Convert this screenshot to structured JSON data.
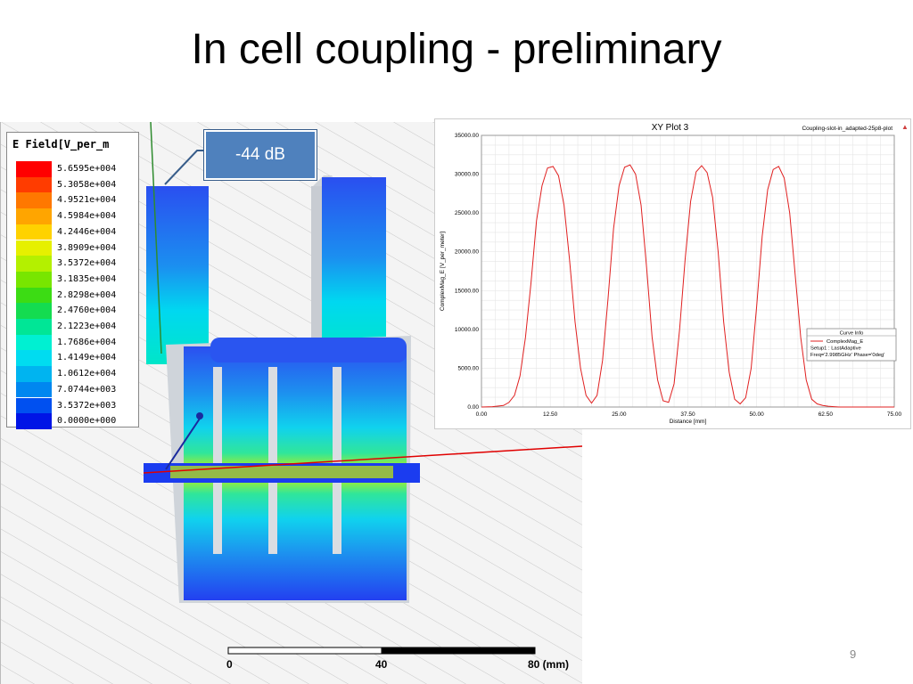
{
  "slide": {
    "title": "In cell coupling - preliminary",
    "page_number": "9"
  },
  "callout": {
    "label": "-44 dB"
  },
  "legend": {
    "title": "E Field[V_per_m",
    "items": [
      {
        "value": "5.6595e+004",
        "color": "#ff0000"
      },
      {
        "value": "5.3058e+004",
        "color": "#ff3c00"
      },
      {
        "value": "4.9521e+004",
        "color": "#ff7800"
      },
      {
        "value": "4.5984e+004",
        "color": "#ffa500"
      },
      {
        "value": "4.2446e+004",
        "color": "#ffd200"
      },
      {
        "value": "3.8909e+004",
        "color": "#e6f000"
      },
      {
        "value": "3.5372e+004",
        "color": "#b4f000"
      },
      {
        "value": "3.1835e+004",
        "color": "#78e600"
      },
      {
        "value": "2.8298e+004",
        "color": "#3cdc14"
      },
      {
        "value": "2.4760e+004",
        "color": "#14dc50"
      },
      {
        "value": "2.1223e+004",
        "color": "#00e696"
      },
      {
        "value": "1.7686e+004",
        "color": "#00f0d2"
      },
      {
        "value": "1.4149e+004",
        "color": "#00dcf0"
      },
      {
        "value": "1.0612e+004",
        "color": "#00b4f0"
      },
      {
        "value": "7.0744e+003",
        "color": "#0087f0"
      },
      {
        "value": "3.5372e+003",
        "color": "#0050f0"
      },
      {
        "value": "0.0000e+000",
        "color": "#0014e6"
      }
    ]
  },
  "scale_bar": {
    "labels": [
      "0",
      "40",
      "80 (mm)"
    ]
  },
  "chart_data": {
    "type": "line",
    "title": "XY Plot 3",
    "subtitle": "Coupling-slot-in_adapted-25p8-plot",
    "xlabel": "Distance [mm]",
    "ylabel": "ComplexMag_E [V_per_meter]",
    "xlim": [
      0,
      75
    ],
    "ylim": [
      0,
      35000
    ],
    "x_ticks": [
      "0.00",
      "12.50",
      "25.00",
      "37.50",
      "50.00",
      "62.50",
      "75.00"
    ],
    "y_ticks": [
      "0.00",
      "5000.00",
      "10000.00",
      "15000.00",
      "20000.00",
      "25000.00",
      "30000.00",
      "35000.00"
    ],
    "legend": {
      "title": "Curve Info",
      "entries": [
        "ComplexMag_E",
        "Setup1 : LastAdaptive",
        "Freq='2.9985GHz' Phase='0deg'"
      ],
      "position": "right"
    },
    "series": [
      {
        "name": "ComplexMag_E",
        "color": "#e02020",
        "x": [
          0,
          2,
          4,
          5,
          6,
          7,
          8,
          9,
          10,
          11,
          12,
          13,
          14,
          15,
          16,
          17,
          18,
          19,
          20,
          21,
          22,
          23,
          24,
          25,
          26,
          27,
          28,
          29,
          30,
          31,
          32,
          33,
          34,
          35,
          36,
          37,
          38,
          39,
          40,
          41,
          42,
          43,
          44,
          45,
          46,
          47,
          48,
          49,
          50,
          51,
          52,
          53,
          54,
          55,
          56,
          57,
          58,
          59,
          60,
          61,
          62,
          63,
          64,
          65,
          66,
          67,
          68,
          69,
          70,
          72,
          75
        ],
        "y": [
          0,
          50,
          200,
          600,
          1500,
          4000,
          9000,
          16000,
          24000,
          28500,
          30800,
          31000,
          29800,
          26000,
          19000,
          11000,
          5000,
          1500,
          500,
          1500,
          6000,
          14000,
          23000,
          28500,
          30900,
          31200,
          30000,
          26000,
          18000,
          9000,
          3500,
          800,
          600,
          3000,
          10000,
          19000,
          26500,
          30300,
          31100,
          30200,
          27000,
          20000,
          11000,
          4500,
          1000,
          400,
          1200,
          5000,
          13000,
          22000,
          28000,
          30600,
          31000,
          29500,
          25000,
          17000,
          9000,
          3500,
          1000,
          400,
          200,
          100,
          50,
          0,
          0,
          0,
          0,
          0,
          0,
          0,
          0
        ]
      }
    ]
  }
}
